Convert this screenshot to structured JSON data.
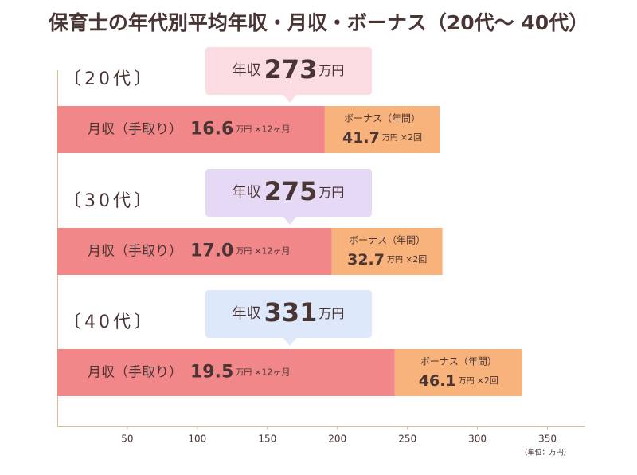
{
  "chart_data": {
    "type": "bar",
    "orientation": "horizontal",
    "stacked": true,
    "title": "保育士の年代別平均年収・月収・ボーナス（20代〜 40代）",
    "categories": [
      "〔20代〕",
      "〔30代〕",
      "〔40代〕"
    ],
    "series": [
      {
        "name": "月収（手取り）",
        "color": "#f2878a",
        "values": [
          191,
          196,
          241
        ],
        "detail_values": [
          "16.6",
          "17.0",
          "19.5"
        ],
        "detail_unit": "万円",
        "detail_multiplier": "×12ヶ月"
      },
      {
        "name": "ボーナス（年間）",
        "color": "#f8b37c",
        "values": [
          82,
          79,
          91
        ],
        "detail_values": [
          "41.7",
          "32.7",
          "46.1"
        ],
        "detail_unit": "万円",
        "detail_multiplier": "×2回"
      }
    ],
    "totals": {
      "prefix": "年収",
      "unit": "万円",
      "values": [
        273,
        275,
        331
      ],
      "colors": [
        "#fbdce2",
        "#e6d9f6",
        "#dde9fa"
      ]
    },
    "xlim": [
      0,
      377
    ],
    "xticks": [
      50,
      100,
      150,
      200,
      250,
      300,
      350
    ],
    "unit_note": "（単位：万円）"
  }
}
